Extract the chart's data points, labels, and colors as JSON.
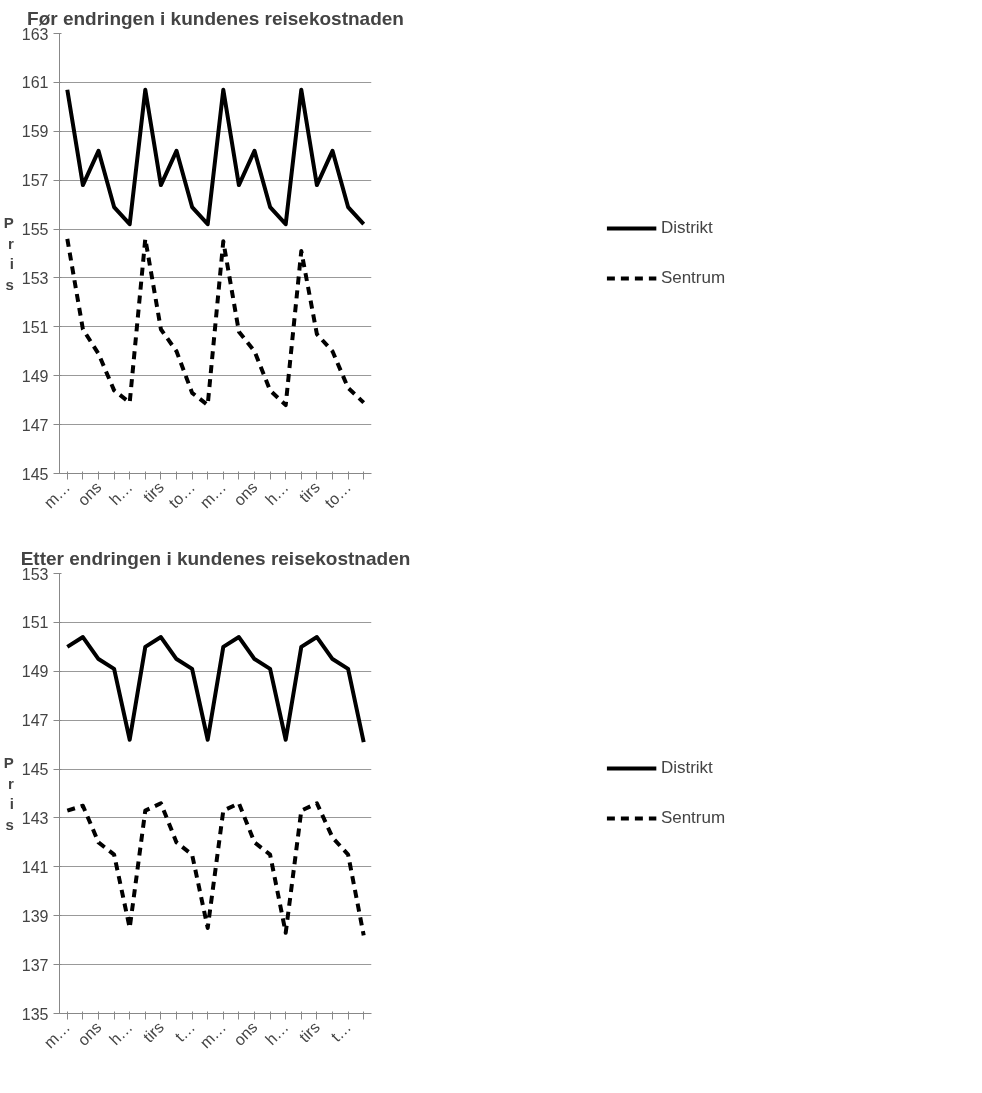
{
  "chart_data": [
    {
      "type": "line",
      "title": "Før endringen i kundenes reisekostnaden",
      "ylabel": "Pris",
      "categories": [
        "m…",
        null,
        "ons",
        null,
        "h…",
        null,
        "tirs",
        null,
        "to…",
        null,
        "m…",
        null,
        "ons",
        null,
        "h…",
        null,
        "tirs",
        null,
        "to…",
        null
      ],
      "series": [
        {
          "name": "Distrikt",
          "color": "#000000",
          "line_style": "solid",
          "values": [
            160.7,
            156.8,
            158.2,
            155.9,
            155.2,
            160.7,
            156.8,
            158.2,
            155.9,
            155.2,
            160.7,
            156.8,
            158.2,
            155.9,
            155.2,
            160.7,
            156.8,
            158.2,
            155.9,
            155.2
          ]
        },
        {
          "name": "Sentrum",
          "color": "#000000",
          "line_style": "dashed",
          "values": [
            154.6,
            150.9,
            149.9,
            148.4,
            147.9,
            154.6,
            150.9,
            150.0,
            148.3,
            147.8,
            154.5,
            150.8,
            150.0,
            148.4,
            147.8,
            154.1,
            150.7,
            150.0,
            148.5,
            147.9
          ]
        }
      ],
      "ylim": [
        145,
        163
      ],
      "yticks": [
        145,
        147,
        149,
        151,
        153,
        155,
        157,
        159,
        161,
        163
      ],
      "grid": "y",
      "legend": "right",
      "marker": "none"
    },
    {
      "type": "line",
      "title": "Etter endringen i kundenes reisekostnaden",
      "ylabel": "Pris",
      "categories": [
        "m…",
        null,
        "ons",
        null,
        "h…",
        null,
        "tirs",
        null,
        "t…",
        null,
        "m…",
        null,
        "ons",
        null,
        "h…",
        null,
        "tirs",
        null,
        "t…",
        null
      ],
      "series": [
        {
          "name": "Distrikt",
          "color": "#000000",
          "line_style": "solid",
          "values": [
            150.0,
            150.4,
            149.5,
            149.1,
            146.2,
            150.0,
            150.4,
            149.5,
            149.1,
            146.2,
            150.0,
            150.4,
            149.5,
            149.1,
            146.2,
            150.0,
            150.4,
            149.5,
            149.1,
            146.1
          ]
        },
        {
          "name": "Sentrum",
          "color": "#000000",
          "line_style": "dashed",
          "values": [
            143.3,
            143.5,
            142.0,
            141.5,
            138.5,
            143.3,
            143.6,
            142.0,
            141.5,
            138.5,
            143.3,
            143.6,
            142.0,
            141.5,
            138.3,
            143.3,
            143.6,
            142.2,
            141.5,
            138.2
          ]
        }
      ],
      "ylim": [
        135,
        153
      ],
      "yticks": [
        135,
        137,
        139,
        141,
        143,
        145,
        147,
        149,
        151,
        153
      ],
      "grid": "y",
      "legend": "right",
      "marker": "none"
    }
  ]
}
